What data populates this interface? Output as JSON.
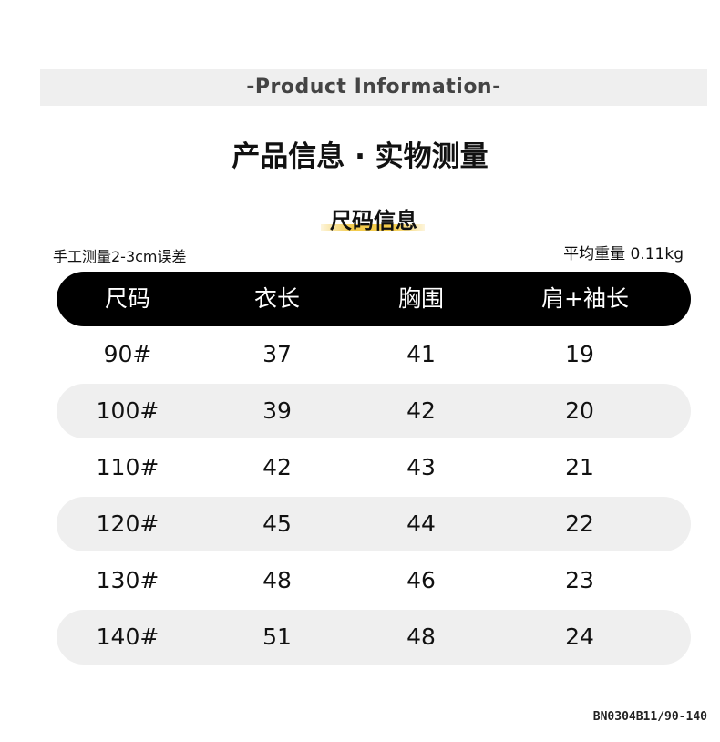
{
  "banner": "-Product  Information-",
  "title": "产品信息 · 实物测量",
  "subtitle": "尺码信息",
  "note_left": "手工测量2-3cm误差",
  "note_right": "平均重量 0.11kg",
  "table": {
    "headers": [
      "尺码",
      "衣长",
      "胸围",
      "肩+袖长"
    ],
    "rows": [
      [
        "90#",
        "37",
        "41",
        "19"
      ],
      [
        "100#",
        "39",
        "42",
        "20"
      ],
      [
        "110#",
        "42",
        "43",
        "21"
      ],
      [
        "120#",
        "45",
        "44",
        "22"
      ],
      [
        "130#",
        "48",
        "46",
        "23"
      ],
      [
        "140#",
        "51",
        "48",
        "24"
      ]
    ]
  },
  "product_code": "BN0304B11/90-140",
  "colors": {
    "header_bg": "#000000",
    "stripe": "#efefef",
    "highlight": "#f3cb4c"
  }
}
